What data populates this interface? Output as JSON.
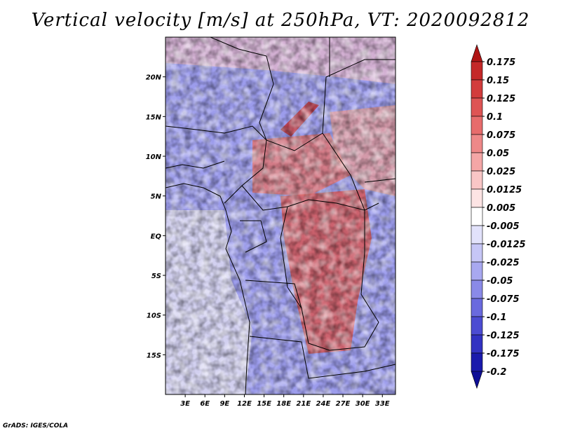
{
  "chart_data": {
    "type": "heatmap",
    "title": "Vertical velocity [m/s] at 250hPa, VT: 2020092812",
    "variable": "Vertical velocity",
    "units": "m/s",
    "level": "250hPa",
    "valid_time": "2020092812",
    "x_ticks": [
      "3E",
      "6E",
      "9E",
      "12E",
      "15E",
      "18E",
      "21E",
      "24E",
      "27E",
      "30E",
      "33E"
    ],
    "x_tick_values": [
      3,
      6,
      9,
      12,
      15,
      18,
      21,
      24,
      27,
      30,
      33
    ],
    "y_ticks": [
      "20N",
      "15N",
      "10N",
      "5N",
      "EQ",
      "5S",
      "10S",
      "15S"
    ],
    "y_tick_values": [
      20,
      15,
      10,
      5,
      0,
      -5,
      -10,
      -15
    ],
    "xlim": [
      0,
      35
    ],
    "ylim": [
      -20,
      25
    ],
    "colorbar_labels": [
      "0.175",
      "0.15",
      "0.125",
      "0.1",
      "0.075",
      "0.05",
      "0.025",
      "0.0125",
      "0.005",
      "-0.005",
      "-0.0125",
      "-0.025",
      "-0.05",
      "-0.075",
      "-0.1",
      "-0.125",
      "-0.175",
      "-0.2"
    ],
    "colorbar_colors": [
      "#b01515",
      "#c42828",
      "#d23c3c",
      "#de5454",
      "#e76c6c",
      "#ee8888",
      "#f4a6a6",
      "#f9c6c6",
      "#fde4e4",
      "#ffffff",
      "#e2e2fb",
      "#c6c6f6",
      "#a8a8f0",
      "#8a8ae8",
      "#6a6ade",
      "#4c4cd2",
      "#3232c2",
      "#1a1aac",
      "#0e0e96"
    ],
    "colorbar_extend": "both"
  },
  "footer": "GrADS: IGES/COLA"
}
